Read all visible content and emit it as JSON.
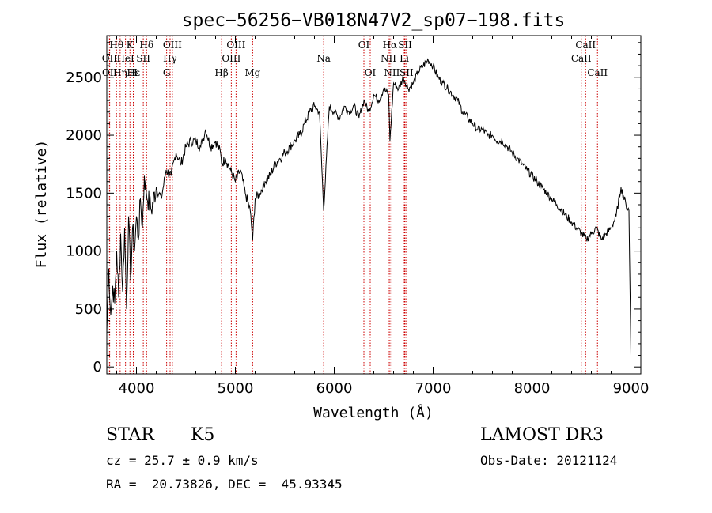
{
  "chart_data": {
    "type": "line",
    "title": "spec−56256−VB018N47V2_sp07−198.fits",
    "xlabel": "Wavelength (Å)",
    "ylabel": "Flux (relative)",
    "xlim": [
      3700,
      9100
    ],
    "ylim": [
      -60,
      2860
    ],
    "xticks": [
      4000,
      5000,
      6000,
      7000,
      8000,
      9000
    ],
    "yticks": [
      0,
      500,
      1000,
      1500,
      2000,
      2500
    ],
    "xtick_labels": [
      "4000",
      "5000",
      "6000",
      "7000",
      "8000",
      "9000"
    ],
    "ytick_labels": [
      "0",
      "500",
      "1000",
      "1500",
      "2000",
      "2500"
    ],
    "grid": false,
    "series": [
      {
        "color": "#000000",
        "x": [
          3700,
          3720,
          3740,
          3760,
          3780,
          3800,
          3820,
          3840,
          3860,
          3880,
          3900,
          3920,
          3940,
          3960,
          3980,
          4000,
          4020,
          4040,
          4060,
          4080,
          4100,
          4150,
          4200,
          4250,
          4300,
          4350,
          4400,
          4450,
          4500,
          4550,
          4600,
          4650,
          4700,
          4750,
          4800,
          4850,
          4861,
          4900,
          4950,
          5000,
          5050,
          5100,
          5150,
          5175,
          5200,
          5250,
          5300,
          5350,
          5400,
          5450,
          5500,
          5550,
          5600,
          5650,
          5700,
          5750,
          5800,
          5850,
          5893,
          5950,
          6000,
          6050,
          6100,
          6150,
          6200,
          6250,
          6300,
          6350,
          6400,
          6450,
          6500,
          6550,
          6563,
          6600,
          6650,
          6700,
          6750,
          6800,
          6850,
          6900,
          6950,
          7000,
          7050,
          7100,
          7150,
          7200,
          7250,
          7300,
          7350,
          7400,
          7450,
          7500,
          7550,
          7600,
          7650,
          7700,
          7750,
          7800,
          7850,
          7900,
          7950,
          8000,
          8050,
          8100,
          8150,
          8200,
          8250,
          8300,
          8350,
          8400,
          8450,
          8500,
          8550,
          8600,
          8650,
          8700,
          8750,
          8800,
          8850,
          8900,
          8950,
          8980,
          9000
        ],
        "y": [
          300,
          850,
          450,
          700,
          550,
          1000,
          600,
          1150,
          650,
          1200,
          500,
          1300,
          750,
          1200,
          1000,
          1300,
          1100,
          1450,
          1200,
          1650,
          1500,
          1350,
          1550,
          1450,
          1700,
          1650,
          1850,
          1750,
          1900,
          1950,
          1950,
          1900,
          2050,
          1900,
          1950,
          1850,
          1750,
          1800,
          1700,
          1600,
          1700,
          1500,
          1350,
          1100,
          1450,
          1500,
          1600,
          1650,
          1750,
          1800,
          1850,
          1900,
          1950,
          2000,
          2100,
          2200,
          2250,
          2200,
          1350,
          2250,
          2200,
          2150,
          2250,
          2200,
          2250,
          2150,
          2300,
          2200,
          2350,
          2300,
          2400,
          2350,
          1950,
          2450,
          2400,
          2500,
          2400,
          2450,
          2550,
          2600,
          2650,
          2600,
          2500,
          2450,
          2400,
          2350,
          2300,
          2200,
          2150,
          2100,
          2050,
          2050,
          2000,
          2000,
          1950,
          1950,
          1900,
          1850,
          1800,
          1750,
          1700,
          1650,
          1600,
          1550,
          1500,
          1450,
          1400,
          1350,
          1300,
          1250,
          1200,
          1150,
          1100,
          1150,
          1200,
          1100,
          1150,
          1200,
          1300,
          1550,
          1400,
          1350,
          100
        ]
      }
    ],
    "lines": [
      {
        "label": "Hθ",
        "x": 3798,
        "row": 0
      },
      {
        "label": "K",
        "x": 3934,
        "row": 0
      },
      {
        "label": "Hδ",
        "x": 4102,
        "row": 0
      },
      {
        "label": "OIII",
        "x": 4363,
        "row": 0
      },
      {
        "label": "OIII",
        "x": 5007,
        "row": 0
      },
      {
        "label": "OI",
        "x": 6300,
        "row": 0
      },
      {
        "label": "Hα",
        "x": 6563,
        "row": 0
      },
      {
        "label": "SII",
        "x": 6716,
        "row": 0
      },
      {
        "label": "CaII",
        "x": 8542,
        "row": 0
      },
      {
        "label": "OII",
        "x": 3727,
        "row": 1
      },
      {
        "label": "HeI",
        "x": 3889,
        "row": 1
      },
      {
        "label": "SII",
        "x": 4069,
        "row": 1
      },
      {
        "label": "Hγ",
        "x": 4340,
        "row": 1
      },
      {
        "label": "OIII",
        "x": 4959,
        "row": 1
      },
      {
        "label": "Na",
        "x": 5893,
        "row": 1
      },
      {
        "label": "NII",
        "x": 6548,
        "row": 1
      },
      {
        "label": "Li",
        "x": 6708,
        "row": 1
      },
      {
        "label": "CaII",
        "x": 8498,
        "row": 1
      },
      {
        "label": "OII",
        "x": 3729,
        "row": 2
      },
      {
        "label": "Hε",
        "x": 3970,
        "row": 2
      },
      {
        "label": "Hη",
        "x": 3835,
        "row": 2
      },
      {
        "label": "H",
        "x": 3968,
        "row": 2
      },
      {
        "label": "G",
        "x": 4305,
        "row": 2
      },
      {
        "label": "Hβ",
        "x": 4861,
        "row": 2
      },
      {
        "label": "Mg",
        "x": 5175,
        "row": 2
      },
      {
        "label": "OI",
        "x": 6364,
        "row": 2
      },
      {
        "label": "NII",
        "x": 6583,
        "row": 2
      },
      {
        "label": "SII",
        "x": 6731,
        "row": 2
      },
      {
        "label": "CaII",
        "x": 8662,
        "row": 2
      }
    ]
  },
  "info": {
    "object_class": "STAR",
    "subclass": "K5",
    "survey": "LAMOST DR3",
    "cz": "cz = 25.7 ± 0.9 km/s",
    "obs_date": "Obs-Date: 20121124",
    "radec": "RA =  20.73826, DEC =  45.93345"
  }
}
